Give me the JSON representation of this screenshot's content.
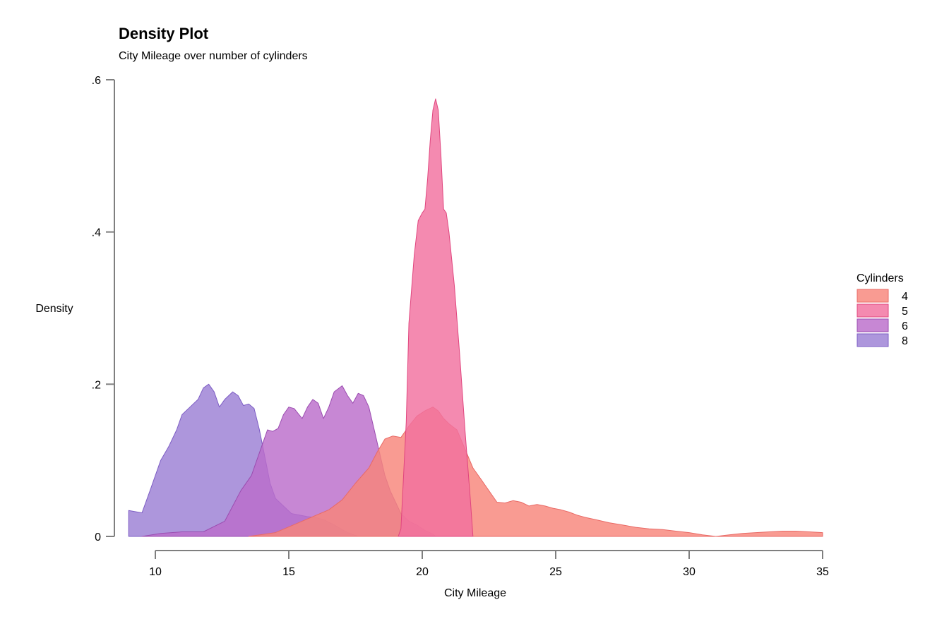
{
  "chart_data": {
    "type": "area",
    "title": "Density Plot",
    "subtitle": "City Mileage over number of cylinders",
    "xlabel": "City Mileage",
    "ylabel": "Density",
    "xlim": [
      9,
      35
    ],
    "ylim": [
      0,
      0.6
    ],
    "x_ticks": [
      {
        "value": 10,
        "label": "10"
      },
      {
        "value": 15,
        "label": "15"
      },
      {
        "value": 20,
        "label": "20"
      },
      {
        "value": 25,
        "label": "25"
      },
      {
        "value": 30,
        "label": "30"
      },
      {
        "value": 35,
        "label": "35"
      }
    ],
    "y_ticks": [
      {
        "value": 0,
        "label": "0"
      },
      {
        "value": 0.2,
        "label": ".2"
      },
      {
        "value": 0.4,
        "label": ".4"
      },
      {
        "value": 0.6,
        "label": ".6"
      }
    ],
    "grid": false,
    "legend": {
      "title": "Cylinders",
      "position": "right"
    },
    "series": [
      {
        "name": "8",
        "fill": "#9b7fd4",
        "stroke": "#7d5dc4",
        "x": [
          9,
          9.5,
          9.8,
          10.2,
          10.5,
          10.8,
          11.0,
          11.3,
          11.6,
          11.8,
          12.0,
          12.2,
          12.4,
          12.6,
          12.9,
          13.1,
          13.3,
          13.5,
          13.7,
          13.9,
          14.1,
          14.3,
          14.5,
          14.8,
          15.1,
          15.4,
          15.7,
          16.0,
          16.3,
          16.6,
          16.9,
          17.2,
          17.6
        ],
        "y": [
          0.034,
          0.031,
          0.06,
          0.1,
          0.118,
          0.14,
          0.16,
          0.17,
          0.18,
          0.195,
          0.2,
          0.19,
          0.17,
          0.18,
          0.19,
          0.185,
          0.172,
          0.174,
          0.168,
          0.14,
          0.105,
          0.07,
          0.05,
          0.04,
          0.03,
          0.028,
          0.026,
          0.025,
          0.022,
          0.017,
          0.011,
          0.005,
          0.0
        ]
      },
      {
        "name": "6",
        "fill": "#bb6ccb",
        "stroke": "#9b4db0",
        "x": [
          9.5,
          10.2,
          11.0,
          11.8,
          12.6,
          13.2,
          13.6,
          14.0,
          14.2,
          14.4,
          14.6,
          14.8,
          15.0,
          15.2,
          15.5,
          15.7,
          15.9,
          16.1,
          16.3,
          16.5,
          16.7,
          17.0,
          17.2,
          17.4,
          17.6,
          17.8,
          18.0,
          18.2,
          18.4,
          18.6,
          18.8,
          19.0,
          19.2,
          19.5,
          19.8,
          20.1,
          20.4,
          20.5
        ],
        "y": [
          0.0,
          0.004,
          0.006,
          0.006,
          0.02,
          0.06,
          0.08,
          0.12,
          0.14,
          0.138,
          0.142,
          0.16,
          0.17,
          0.168,
          0.155,
          0.17,
          0.18,
          0.175,
          0.155,
          0.17,
          0.19,
          0.198,
          0.185,
          0.175,
          0.188,
          0.185,
          0.17,
          0.14,
          0.11,
          0.08,
          0.06,
          0.045,
          0.03,
          0.02,
          0.015,
          0.008,
          0.003,
          0.0
        ]
      },
      {
        "name": "4",
        "fill": "#f8857a",
        "stroke": "#e96a66",
        "x": [
          13.5,
          14.5,
          15.5,
          16.5,
          17.0,
          17.5,
          18.0,
          18.3,
          18.6,
          18.9,
          19.2,
          19.5,
          19.8,
          20.1,
          20.4,
          20.6,
          20.8,
          21.0,
          21.3,
          21.6,
          21.9,
          22.2,
          22.5,
          22.8,
          23.1,
          23.4,
          23.7,
          24.0,
          24.3,
          24.6,
          24.9,
          25.2,
          25.5,
          25.8,
          26.1,
          26.5,
          27.0,
          27.5,
          28.0,
          28.5,
          29.0,
          29.5,
          30.0,
          30.5,
          31.0,
          31.5,
          32.0,
          32.5,
          33.0,
          33.5,
          34.0,
          34.5,
          35.0
        ],
        "y": [
          0.0,
          0.005,
          0.02,
          0.035,
          0.048,
          0.07,
          0.09,
          0.11,
          0.128,
          0.132,
          0.13,
          0.145,
          0.158,
          0.165,
          0.17,
          0.165,
          0.155,
          0.148,
          0.14,
          0.115,
          0.09,
          0.075,
          0.06,
          0.045,
          0.044,
          0.047,
          0.045,
          0.04,
          0.042,
          0.04,
          0.037,
          0.035,
          0.032,
          0.028,
          0.025,
          0.022,
          0.018,
          0.015,
          0.012,
          0.01,
          0.009,
          0.007,
          0.005,
          0.002,
          0.0,
          0.002,
          0.004,
          0.005,
          0.006,
          0.007,
          0.007,
          0.006,
          0.005
        ]
      },
      {
        "name": "5",
        "fill": "#f2709f",
        "stroke": "#e0457e",
        "x": [
          19.1,
          19.2,
          19.4,
          19.5,
          19.7,
          19.85,
          20.0,
          20.1,
          20.2,
          20.3,
          20.4,
          20.5,
          20.6,
          20.7,
          20.8,
          20.9,
          21.0,
          21.2,
          21.4,
          21.6,
          21.8,
          21.9
        ],
        "y": [
          0.0,
          0.01,
          0.15,
          0.28,
          0.37,
          0.415,
          0.425,
          0.43,
          0.47,
          0.52,
          0.56,
          0.575,
          0.56,
          0.5,
          0.43,
          0.425,
          0.4,
          0.33,
          0.24,
          0.14,
          0.05,
          0.0
        ]
      }
    ]
  }
}
